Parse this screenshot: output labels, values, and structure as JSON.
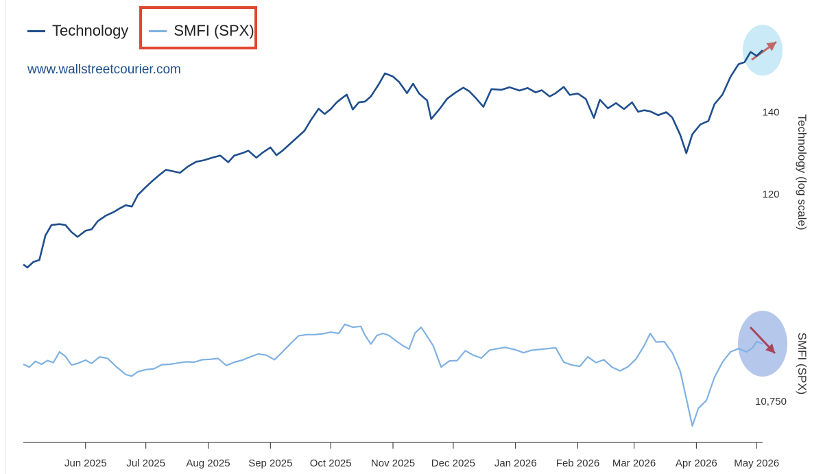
{
  "legend": {
    "items": [
      {
        "label": "Technology",
        "color": "#1f4e8c"
      },
      {
        "label": "SMFI (SPX)",
        "color": "#7fb1e2"
      }
    ],
    "highlight_color": "#e0472f"
  },
  "watermark": "www.wallstreetcourier.com",
  "chart_data": {
    "type": "line",
    "x_axis": {
      "start": "2025-05-01",
      "end": "2026-05-04",
      "ticks": [
        {
          "date": "2025-06-01",
          "label": "Jun 2025"
        },
        {
          "date": "2025-07-01",
          "label": "Jul 2025"
        },
        {
          "date": "2025-08-01",
          "label": "Aug 2025"
        },
        {
          "date": "2025-09-01",
          "label": "Sep 2025"
        },
        {
          "date": "2025-10-01",
          "label": "Oct 2025"
        },
        {
          "date": "2025-11-01",
          "label": "Nov 2025"
        },
        {
          "date": "2025-12-01",
          "label": "Dec 2025"
        },
        {
          "date": "2026-01-01",
          "label": "Jan 2026"
        },
        {
          "date": "2026-02-01",
          "label": "Feb 2026"
        },
        {
          "date": "2026-03-01",
          "label": "Mar 2026"
        },
        {
          "date": "2026-04-01",
          "label": "Apr 2026"
        },
        {
          "date": "2026-05-01",
          "label": "May 2026"
        }
      ]
    },
    "series": [
      {
        "name": "Technology",
        "axis": "Technology (log scale)",
        "scale": "log",
        "color": "#1f4e8c",
        "ylim": [
          102.5,
          160
        ],
        "ticks": [
          {
            "value": 120,
            "label": "120"
          },
          {
            "value": 140,
            "label": "140"
          }
        ],
        "points": [
          [
            "2025-05-01",
            105.1
          ],
          [
            "2025-05-03",
            104.5
          ],
          [
            "2025-05-06",
            105.6
          ],
          [
            "2025-05-09",
            106.0
          ],
          [
            "2025-05-12",
            111.0
          ],
          [
            "2025-05-15",
            113.2
          ],
          [
            "2025-05-19",
            113.4
          ],
          [
            "2025-05-22",
            113.2
          ],
          [
            "2025-05-25",
            111.7
          ],
          [
            "2025-05-28",
            110.7
          ],
          [
            "2025-06-01",
            112.0
          ],
          [
            "2025-06-04",
            112.3
          ],
          [
            "2025-06-07",
            114.0
          ],
          [
            "2025-06-11",
            115.2
          ],
          [
            "2025-06-15",
            116.0
          ],
          [
            "2025-06-18",
            116.8
          ],
          [
            "2025-06-21",
            117.5
          ],
          [
            "2025-06-24",
            117.2
          ],
          [
            "2025-06-27",
            119.8
          ],
          [
            "2025-07-01",
            121.6
          ],
          [
            "2025-07-04",
            122.9
          ],
          [
            "2025-07-08",
            124.5
          ],
          [
            "2025-07-11",
            125.6
          ],
          [
            "2025-07-14",
            125.3
          ],
          [
            "2025-07-18",
            124.9
          ],
          [
            "2025-07-22",
            126.4
          ],
          [
            "2025-07-26",
            127.5
          ],
          [
            "2025-07-30",
            127.9
          ],
          [
            "2025-08-03",
            128.5
          ],
          [
            "2025-08-07",
            129.0
          ],
          [
            "2025-08-11",
            127.4
          ],
          [
            "2025-08-14",
            129.0
          ],
          [
            "2025-08-18",
            129.6
          ],
          [
            "2025-08-21",
            130.2
          ],
          [
            "2025-08-25",
            128.5
          ],
          [
            "2025-08-28",
            129.7
          ],
          [
            "2025-09-01",
            131.0
          ],
          [
            "2025-09-04",
            129.1
          ],
          [
            "2025-09-07",
            130.2
          ],
          [
            "2025-09-11",
            132.0
          ],
          [
            "2025-09-15",
            133.8
          ],
          [
            "2025-09-18",
            135.2
          ],
          [
            "2025-09-21",
            137.8
          ],
          [
            "2025-09-25",
            140.9
          ],
          [
            "2025-09-28",
            139.5
          ],
          [
            "2025-10-01",
            140.8
          ],
          [
            "2025-10-04",
            142.6
          ],
          [
            "2025-10-07",
            143.9
          ],
          [
            "2025-10-09",
            144.7
          ],
          [
            "2025-10-12",
            140.7
          ],
          [
            "2025-10-15",
            142.6
          ],
          [
            "2025-10-18",
            142.8
          ],
          [
            "2025-10-21",
            144.2
          ],
          [
            "2025-10-25",
            147.6
          ],
          [
            "2025-10-28",
            150.6
          ],
          [
            "2025-11-01",
            149.7
          ],
          [
            "2025-11-04",
            148.2
          ],
          [
            "2025-11-08",
            145.1
          ],
          [
            "2025-11-11",
            147.7
          ],
          [
            "2025-11-14",
            145.0
          ],
          [
            "2025-11-18",
            143.1
          ],
          [
            "2025-11-20",
            138.2
          ],
          [
            "2025-11-24",
            140.7
          ],
          [
            "2025-11-28",
            143.6
          ],
          [
            "2025-12-02",
            145.2
          ],
          [
            "2025-12-06",
            146.6
          ],
          [
            "2025-12-09",
            145.6
          ],
          [
            "2025-12-12",
            143.9
          ],
          [
            "2025-12-16",
            141.4
          ],
          [
            "2025-12-20",
            146.2
          ],
          [
            "2025-12-25",
            146.0
          ],
          [
            "2025-12-29",
            146.7
          ],
          [
            "2026-01-03",
            145.8
          ],
          [
            "2026-01-07",
            146.5
          ],
          [
            "2026-01-11",
            145.3
          ],
          [
            "2026-01-14",
            145.9
          ],
          [
            "2026-01-18",
            144.2
          ],
          [
            "2026-01-21",
            145.1
          ],
          [
            "2026-01-25",
            146.8
          ],
          [
            "2026-01-28",
            144.6
          ],
          [
            "2026-02-01",
            145.0
          ],
          [
            "2026-02-05",
            143.5
          ],
          [
            "2026-02-09",
            138.5
          ],
          [
            "2026-02-12",
            143.3
          ],
          [
            "2026-02-16",
            141.0
          ],
          [
            "2026-02-20",
            142.4
          ],
          [
            "2026-02-24",
            140.8
          ],
          [
            "2026-02-28",
            142.6
          ],
          [
            "2026-03-03",
            140.1
          ],
          [
            "2026-03-06",
            140.5
          ],
          [
            "2026-03-09",
            140.2
          ],
          [
            "2026-03-13",
            139.2
          ],
          [
            "2026-03-17",
            140.0
          ],
          [
            "2026-03-20",
            138.6
          ],
          [
            "2026-03-24",
            134.1
          ],
          [
            "2026-03-27",
            129.6
          ],
          [
            "2026-03-30",
            134.3
          ],
          [
            "2026-04-03",
            136.8
          ],
          [
            "2026-04-07",
            137.7
          ],
          [
            "2026-04-10",
            142.1
          ],
          [
            "2026-04-14",
            144.7
          ],
          [
            "2026-04-18",
            149.6
          ],
          [
            "2026-04-22",
            153.2
          ],
          [
            "2026-04-25",
            153.8
          ],
          [
            "2026-04-28",
            156.8
          ],
          [
            "2026-05-01",
            155.6
          ],
          [
            "2026-05-04",
            157.3
          ]
        ],
        "annotation": {
          "direction": "up",
          "circle_color": "#bfe6f5",
          "arrow_color": "#c06868"
        }
      },
      {
        "name": "SMFI (SPX)",
        "axis": "SMFI (SPX)",
        "scale": "linear",
        "color": "#7fb1e2",
        "ylim": [
          10650,
          11050
        ],
        "ticks": [
          {
            "value": 10750,
            "label": "10,750"
          }
        ],
        "points": [
          [
            "2025-05-01",
            10840
          ],
          [
            "2025-05-04",
            10833
          ],
          [
            "2025-05-07",
            10847
          ],
          [
            "2025-05-10",
            10840
          ],
          [
            "2025-05-13",
            10849
          ],
          [
            "2025-05-16",
            10844
          ],
          [
            "2025-05-19",
            10870
          ],
          [
            "2025-05-22",
            10859
          ],
          [
            "2025-05-25",
            10838
          ],
          [
            "2025-05-28",
            10842
          ],
          [
            "2025-06-01",
            10850
          ],
          [
            "2025-06-04",
            10842
          ],
          [
            "2025-06-08",
            10858
          ],
          [
            "2025-06-12",
            10854
          ],
          [
            "2025-06-16",
            10835
          ],
          [
            "2025-06-21",
            10815
          ],
          [
            "2025-06-24",
            10811
          ],
          [
            "2025-06-27",
            10822
          ],
          [
            "2025-07-01",
            10827
          ],
          [
            "2025-07-05",
            10829
          ],
          [
            "2025-07-09",
            10839
          ],
          [
            "2025-07-13",
            10840
          ],
          [
            "2025-07-17",
            10843
          ],
          [
            "2025-07-21",
            10846
          ],
          [
            "2025-07-25",
            10845
          ],
          [
            "2025-07-29",
            10851
          ],
          [
            "2025-08-02",
            10852
          ],
          [
            "2025-08-06",
            10854
          ],
          [
            "2025-08-10",
            10837
          ],
          [
            "2025-08-14",
            10845
          ],
          [
            "2025-08-18",
            10850
          ],
          [
            "2025-08-22",
            10858
          ],
          [
            "2025-08-26",
            10865
          ],
          [
            "2025-08-30",
            10862
          ],
          [
            "2025-09-03",
            10851
          ],
          [
            "2025-09-07",
            10870
          ],
          [
            "2025-09-11",
            10890
          ],
          [
            "2025-09-15",
            10909
          ],
          [
            "2025-09-19",
            10912
          ],
          [
            "2025-09-23",
            10912
          ],
          [
            "2025-09-27",
            10914
          ],
          [
            "2025-10-01",
            10918
          ],
          [
            "2025-10-05",
            10915
          ],
          [
            "2025-10-08",
            10937
          ],
          [
            "2025-10-12",
            10930
          ],
          [
            "2025-10-16",
            10932
          ],
          [
            "2025-10-18",
            10911
          ],
          [
            "2025-10-21",
            10889
          ],
          [
            "2025-10-24",
            10910
          ],
          [
            "2025-10-27",
            10915
          ],
          [
            "2025-10-30",
            10910
          ],
          [
            "2025-11-03",
            10895
          ],
          [
            "2025-11-06",
            10885
          ],
          [
            "2025-11-09",
            10877
          ],
          [
            "2025-11-12",
            10916
          ],
          [
            "2025-11-15",
            10930
          ],
          [
            "2025-11-18",
            10908
          ],
          [
            "2025-11-21",
            10885
          ],
          [
            "2025-11-25",
            10833
          ],
          [
            "2025-11-29",
            10848
          ],
          [
            "2025-12-03",
            10849
          ],
          [
            "2025-12-07",
            10873
          ],
          [
            "2025-12-11",
            10862
          ],
          [
            "2025-12-15",
            10855
          ],
          [
            "2025-12-19",
            10874
          ],
          [
            "2025-12-23",
            10878
          ],
          [
            "2025-12-27",
            10881
          ],
          [
            "2026-01-01",
            10875
          ],
          [
            "2026-01-05",
            10868
          ],
          [
            "2026-01-09",
            10874
          ],
          [
            "2026-01-13",
            10876
          ],
          [
            "2026-01-17",
            10878
          ],
          [
            "2026-01-21",
            10880
          ],
          [
            "2026-01-25",
            10845
          ],
          [
            "2026-01-29",
            10838
          ],
          [
            "2026-02-02",
            10835
          ],
          [
            "2026-02-06",
            10858
          ],
          [
            "2026-02-10",
            10844
          ],
          [
            "2026-02-14",
            10851
          ],
          [
            "2026-02-18",
            10833
          ],
          [
            "2026-02-22",
            10824
          ],
          [
            "2026-02-26",
            10834
          ],
          [
            "2026-03-02",
            10853
          ],
          [
            "2026-03-06",
            10885
          ],
          [
            "2026-03-09",
            10915
          ],
          [
            "2026-03-12",
            10894
          ],
          [
            "2026-03-16",
            10895
          ],
          [
            "2026-03-20",
            10868
          ],
          [
            "2026-03-24",
            10823
          ],
          [
            "2026-03-27",
            10757
          ],
          [
            "2026-03-30",
            10690
          ],
          [
            "2026-04-02",
            10733
          ],
          [
            "2026-04-06",
            10752
          ],
          [
            "2026-04-10",
            10808
          ],
          [
            "2026-04-14",
            10845
          ],
          [
            "2026-04-18",
            10870
          ],
          [
            "2026-04-22",
            10878
          ],
          [
            "2026-04-26",
            10870
          ],
          [
            "2026-04-29",
            10880
          ],
          [
            "2026-05-01",
            10895
          ],
          [
            "2026-05-04",
            10890
          ]
        ],
        "annotation": {
          "direction": "down",
          "circle_color": "#a9bde9",
          "arrow_color": "#a6465a"
        }
      }
    ]
  }
}
